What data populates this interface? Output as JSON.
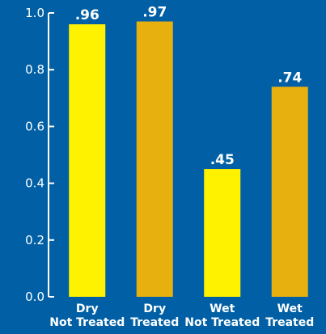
{
  "chart_data": {
    "type": "bar",
    "categories": [
      [
        "Dry",
        "Not Treated"
      ],
      [
        "Dry",
        "Treated"
      ],
      [
        "Wet",
        "Not Treated"
      ],
      [
        "Wet",
        "Treated"
      ]
    ],
    "values": [
      0.96,
      0.97,
      0.45,
      0.74
    ],
    "value_labels": [
      ".96",
      ".97",
      ".45",
      ".74"
    ],
    "bar_colors": [
      "#fff200",
      "#e8b00f",
      "#fff200",
      "#e8b00f"
    ],
    "ylim": [
      0,
      1.0
    ],
    "yticks": [
      0.0,
      0.2,
      0.4,
      0.6,
      0.8,
      1.0
    ],
    "ytick_labels": [
      "0.0",
      "0.2",
      "0.4",
      "0.6",
      "0.8",
      "1.0"
    ],
    "grid": false,
    "legend": "none",
    "colors": {
      "background": "#0160a5",
      "axis": "#ffffff",
      "text": "#ffffff"
    }
  }
}
